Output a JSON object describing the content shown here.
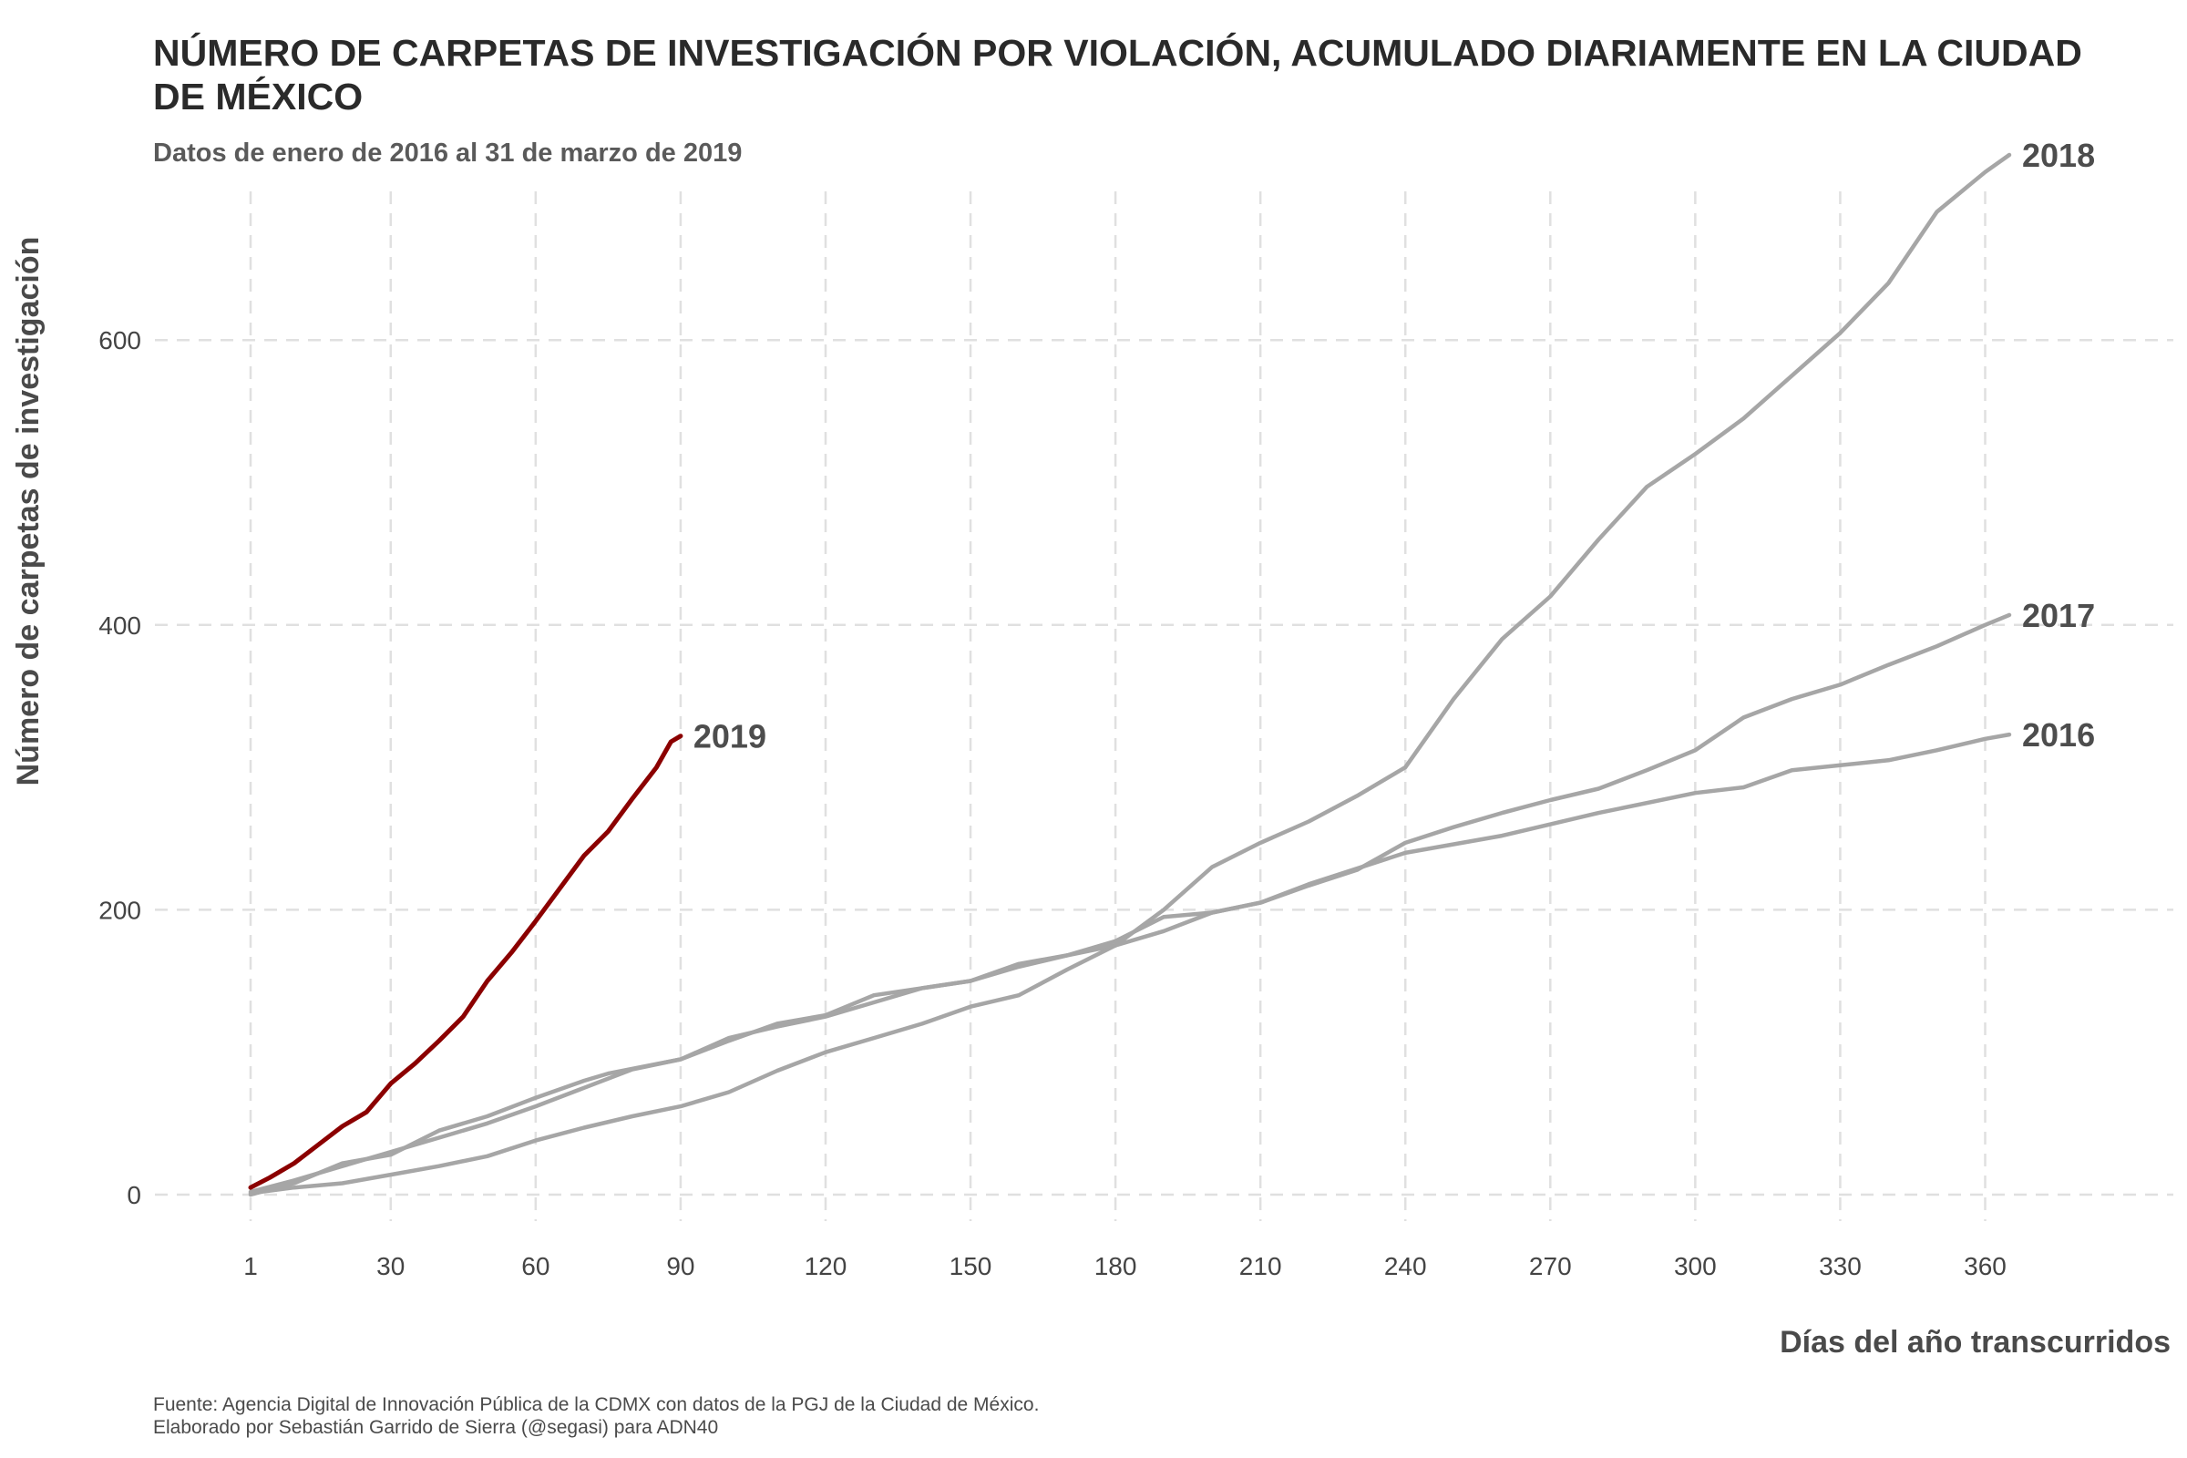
{
  "title": "NÚMERO DE CARPETAS DE INVESTIGACIÓN POR VIOLACIÓN, ACUMULADO DIARIAMENTE EN LA CIUDAD DE MÉXICO",
  "subtitle": "Datos de enero de 2016 al 31 de marzo de 2019",
  "caption_line1": "Fuente: Agencia Digital de Innovación Pública de la CDMX con datos de la PGJ de la Ciudad de México.",
  "caption_line2": "Elaborado por Sebastián Garrido de Sierra (@segasi) para ADN40",
  "colors": {
    "highlight": "#8b0000",
    "other": "#a6a6a6",
    "grid": "#e0e0e0"
  },
  "chart_data": {
    "type": "line",
    "xlabel": "Días del año transcurridos",
    "ylabel": "Número de carpetas de investigación",
    "xlim": [
      1,
      365
    ],
    "ylim": [
      0,
      730
    ],
    "x_ticks": [
      1,
      30,
      60,
      90,
      120,
      150,
      180,
      210,
      240,
      270,
      300,
      330,
      360
    ],
    "y_ticks": [
      0,
      200,
      400,
      600
    ],
    "grid": true,
    "legend": "none",
    "series": [
      {
        "name": "2016",
        "color": "#a6a6a6",
        "points": [
          [
            1,
            0
          ],
          [
            10,
            8
          ],
          [
            20,
            22
          ],
          [
            30,
            28
          ],
          [
            40,
            45
          ],
          [
            50,
            55
          ],
          [
            60,
            68
          ],
          [
            70,
            80
          ],
          [
            75,
            85
          ],
          [
            90,
            95
          ],
          [
            100,
            108
          ],
          [
            110,
            120
          ],
          [
            120,
            126
          ],
          [
            130,
            140
          ],
          [
            150,
            150
          ],
          [
            160,
            162
          ],
          [
            170,
            168
          ],
          [
            180,
            178
          ],
          [
            190,
            195
          ],
          [
            200,
            198
          ],
          [
            210,
            205
          ],
          [
            220,
            218
          ],
          [
            240,
            240
          ],
          [
            260,
            252
          ],
          [
            280,
            268
          ],
          [
            300,
            282
          ],
          [
            310,
            286
          ],
          [
            320,
            298
          ],
          [
            340,
            305
          ],
          [
            350,
            312
          ],
          [
            360,
            320
          ],
          [
            365,
            323
          ]
        ]
      },
      {
        "name": "2017",
        "color": "#a6a6a6",
        "points": [
          [
            1,
            2
          ],
          [
            10,
            10
          ],
          [
            20,
            20
          ],
          [
            25,
            25
          ],
          [
            30,
            30
          ],
          [
            40,
            40
          ],
          [
            50,
            50
          ],
          [
            60,
            62
          ],
          [
            70,
            75
          ],
          [
            80,
            88
          ],
          [
            90,
            95
          ],
          [
            100,
            110
          ],
          [
            110,
            118
          ],
          [
            120,
            125
          ],
          [
            130,
            135
          ],
          [
            140,
            145
          ],
          [
            150,
            150
          ],
          [
            160,
            160
          ],
          [
            170,
            168
          ],
          [
            180,
            175
          ],
          [
            190,
            185
          ],
          [
            200,
            198
          ],
          [
            210,
            205
          ],
          [
            220,
            217
          ],
          [
            230,
            228
          ],
          [
            240,
            247
          ],
          [
            250,
            258
          ],
          [
            260,
            268
          ],
          [
            270,
            277
          ],
          [
            280,
            285
          ],
          [
            290,
            298
          ],
          [
            300,
            312
          ],
          [
            310,
            335
          ],
          [
            320,
            348
          ],
          [
            330,
            358
          ],
          [
            340,
            372
          ],
          [
            350,
            385
          ],
          [
            360,
            400
          ],
          [
            365,
            407
          ]
        ]
      },
      {
        "name": "2018",
        "color": "#a6a6a6",
        "points": [
          [
            1,
            1
          ],
          [
            10,
            5
          ],
          [
            20,
            8
          ],
          [
            30,
            14
          ],
          [
            40,
            20
          ],
          [
            50,
            27
          ],
          [
            60,
            38
          ],
          [
            70,
            47
          ],
          [
            80,
            55
          ],
          [
            90,
            62
          ],
          [
            100,
            72
          ],
          [
            110,
            87
          ],
          [
            120,
            100
          ],
          [
            130,
            110
          ],
          [
            140,
            120
          ],
          [
            150,
            132
          ],
          [
            160,
            140
          ],
          [
            170,
            158
          ],
          [
            180,
            175
          ],
          [
            190,
            200
          ],
          [
            200,
            230
          ],
          [
            210,
            247
          ],
          [
            220,
            262
          ],
          [
            230,
            280
          ],
          [
            240,
            300
          ],
          [
            250,
            348
          ],
          [
            260,
            390
          ],
          [
            270,
            420
          ],
          [
            280,
            460
          ],
          [
            290,
            497
          ],
          [
            300,
            520
          ],
          [
            310,
            545
          ],
          [
            320,
            575
          ],
          [
            330,
            605
          ],
          [
            340,
            640
          ],
          [
            350,
            690
          ],
          [
            360,
            718
          ],
          [
            365,
            730
          ]
        ]
      },
      {
        "name": "2019",
        "color": "#8b0000",
        "points": [
          [
            1,
            5
          ],
          [
            5,
            12
          ],
          [
            10,
            22
          ],
          [
            15,
            35
          ],
          [
            20,
            48
          ],
          [
            25,
            58
          ],
          [
            30,
            78
          ],
          [
            35,
            92
          ],
          [
            40,
            108
          ],
          [
            45,
            125
          ],
          [
            50,
            150
          ],
          [
            55,
            170
          ],
          [
            60,
            192
          ],
          [
            65,
            215
          ],
          [
            70,
            238
          ],
          [
            75,
            255
          ],
          [
            80,
            278
          ],
          [
            85,
            300
          ],
          [
            88,
            318
          ],
          [
            90,
            322
          ]
        ]
      }
    ]
  }
}
